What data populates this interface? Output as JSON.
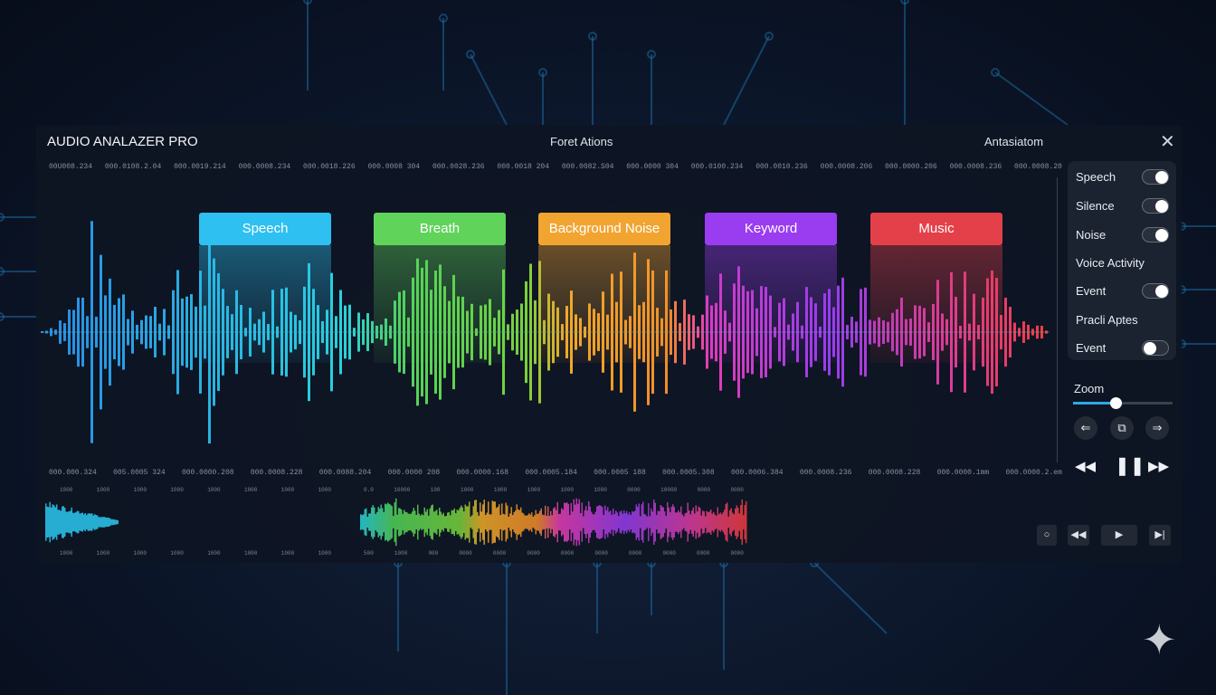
{
  "header": {
    "title": "AUDIO ANALAZER PRO",
    "center_label": "Foret Ations",
    "right_label": "Antasiatom",
    "close_icon": "close-icon"
  },
  "top_timestamps": [
    "00U008.234",
    "000.0108.2.04",
    "000.0019.214",
    "000.0008.234",
    "000.0018.226",
    "000.0008 304",
    "000.0028.236",
    "000.0018 204",
    "000.0082.S04",
    "000.0000 304",
    "000.0100.234",
    "000.0010.236",
    "000.0008.206",
    "000.0000.206",
    "000.0008.236",
    "000.0008.20"
  ],
  "bottom_timestamps": [
    "000.000.324",
    "005.0005 324",
    "000.0000.208",
    "000.0008.228",
    "000.0088.204",
    "000.0000 208",
    "000.0000.168",
    "000.0005.184",
    "000.0005 188",
    "000.0005.308",
    "000.0006.384",
    "000.0008.236",
    "000.0008.228",
    "000.0000.1mm",
    "000.0000.2.em"
  ],
  "segments": [
    {
      "label": "Speech",
      "color": "#2ec0f0"
    },
    {
      "label": "Breath",
      "color": "#5fd35a"
    },
    {
      "label": "Background Noise",
      "color": "#f2a431"
    },
    {
      "label": "Keyword",
      "color": "#9a3cf0"
    },
    {
      "label": "Music",
      "color": "#e4404a"
    }
  ],
  "sidebar": {
    "items": [
      {
        "label": "Speech",
        "toggle": true
      },
      {
        "label": "Silence",
        "toggle": true
      },
      {
        "label": "Noise",
        "toggle": true
      },
      {
        "label": "Voice Activity"
      },
      {
        "label": "Event",
        "toggle": true
      },
      {
        "label": "Pracli Aptes"
      },
      {
        "label": "Event",
        "toggle": false
      }
    ]
  },
  "zoom": {
    "label": "Zoom",
    "value_percent": 43
  },
  "nav_buttons": {
    "back_icon": "arrow-left-icon",
    "center_icon": "reset-icon",
    "forward_icon": "arrow-right-icon",
    "back": "⇐",
    "center": "⧉",
    "forward": "⇒"
  },
  "transport": {
    "rewind": "◀◀",
    "pause": "❚❚",
    "forward": "▶▶"
  },
  "bottom_buttons": {
    "loop": "○",
    "prev": "◀◀",
    "play": "▶",
    "next": "▶|"
  },
  "mini_left": {
    "top_ticks": [
      "1000",
      "1000",
      "1000",
      "1000",
      "1000",
      "1000",
      "1000",
      "1000"
    ],
    "bottom_ticks": [
      "1000",
      "1000",
      "1000",
      "1000",
      "1000",
      "1000",
      "1000",
      "1000"
    ]
  },
  "mini_right": {
    "top_ticks": [
      "0.0",
      "10000",
      "100",
      "1000",
      "1000",
      "1000",
      "1000",
      "1000",
      "0000",
      "10000",
      "0000",
      "0000"
    ],
    "bottom_ticks": [
      "500",
      "1000",
      "000",
      "0000",
      "0000",
      "0000",
      "0000",
      "0000",
      "0000",
      "0000",
      "0000",
      "0000"
    ]
  }
}
